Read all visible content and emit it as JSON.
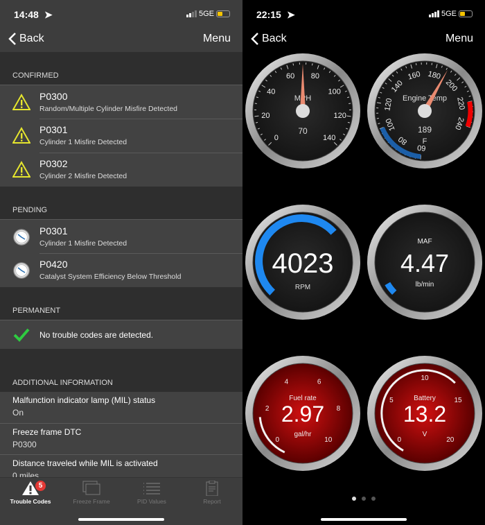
{
  "left": {
    "status": {
      "time": "14:48",
      "network": "5GE"
    },
    "nav": {
      "back": "Back",
      "menu": "Menu"
    },
    "sections": {
      "confirmed": {
        "title": "CONFIRMED",
        "items": [
          {
            "code": "P0300",
            "desc": "Random/Multiple Cylinder Misfire Detected",
            "icon": "warning-icon"
          },
          {
            "code": "P0301",
            "desc": "Cylinder 1 Misfire Detected",
            "icon": "warning-icon"
          },
          {
            "code": "P0302",
            "desc": "Cylinder 2 Misfire Detected",
            "icon": "warning-icon"
          }
        ]
      },
      "pending": {
        "title": "PENDING",
        "items": [
          {
            "code": "P0301",
            "desc": "Cylinder 1 Misfire Detected",
            "icon": "clock-icon"
          },
          {
            "code": "P0420",
            "desc": "Catalyst System Efficiency Below Threshold",
            "icon": "clock-icon"
          }
        ]
      },
      "permanent": {
        "title": "PERMANENT",
        "message": "No trouble codes are detected.",
        "icon": "checkmark-icon"
      },
      "additional": {
        "title": "ADDITIONAL INFORMATION",
        "items": [
          {
            "label": "Malfunction indicator lamp (MIL) status",
            "value": "On"
          },
          {
            "label": "Freeze frame DTC",
            "value": "P0300"
          },
          {
            "label": "Distance traveled while MIL is activated",
            "value": "0 miles"
          }
        ]
      }
    },
    "tabs": [
      {
        "label": "Trouble Codes",
        "icon": "warning-icon",
        "badge": "5",
        "active": true
      },
      {
        "label": "Freeze Frame",
        "icon": "freeze-frame-icon"
      },
      {
        "label": "PID Values",
        "icon": "list-icon"
      },
      {
        "label": "Report",
        "icon": "clipboard-icon"
      }
    ]
  },
  "right": {
    "status": {
      "time": "22:15",
      "network": "5GE"
    },
    "nav": {
      "back": "Back",
      "menu": "Menu"
    },
    "gauges": [
      {
        "id": "speed",
        "label": "MPH",
        "value": "70",
        "min": 0,
        "max": 140,
        "reading": 70,
        "ticks": [
          "0",
          "20",
          "40",
          "60",
          "80",
          "100",
          "120",
          "140"
        ],
        "face": "dark"
      },
      {
        "id": "temp",
        "label": "Engine Temp",
        "value": "189",
        "unit": "F",
        "min": 60,
        "max": 240,
        "reading": 189,
        "ticks": [
          "60",
          "80",
          "100",
          "120",
          "140",
          "160",
          "180",
          "200",
          "220",
          "240"
        ],
        "face": "dark",
        "cold_zone": [
          60,
          100
        ],
        "hot_zone": [
          220,
          240
        ]
      },
      {
        "id": "rpm",
        "label": "RPM",
        "value": "4023",
        "min": 0,
        "max": 6000,
        "reading": 4023,
        "face": "dark",
        "accent": "#1e88f0"
      },
      {
        "id": "maf",
        "label": "MAF",
        "value": "4.47",
        "unit": "lb/min",
        "min": 0,
        "max": 100,
        "reading": 4.47,
        "face": "dark",
        "accent": "#1e88f0"
      },
      {
        "id": "fuel",
        "label": "Fuel rate",
        "value": "2.97",
        "unit": "gal/hr",
        "min": 0,
        "max": 10,
        "reading": 2.97,
        "ticks": [
          "0",
          "2",
          "4",
          "6",
          "8",
          "10"
        ],
        "face": "red"
      },
      {
        "id": "battery",
        "label": "Battery",
        "value": "13.2",
        "unit": "V",
        "min": 0,
        "max": 20,
        "reading": 13.2,
        "ticks": [
          "0",
          "5",
          "10",
          "15",
          "20"
        ],
        "face": "red"
      }
    ],
    "pager": {
      "pages": 3,
      "current": 1
    }
  }
}
